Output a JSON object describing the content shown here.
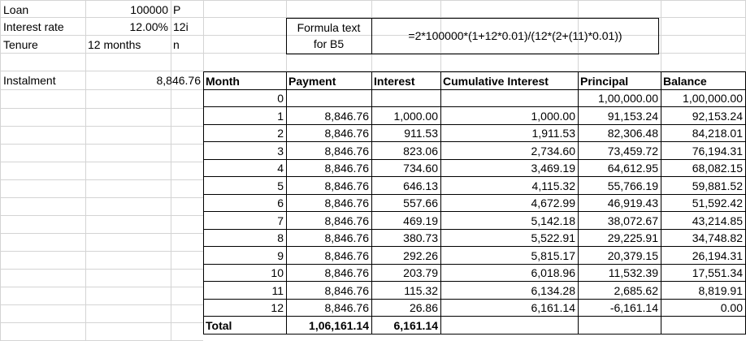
{
  "inputs": {
    "loan": {
      "label": "Loan",
      "value": "100000",
      "symbol": "P"
    },
    "rate": {
      "label": "Interest rate",
      "value": "12.00%",
      "symbol": "12i"
    },
    "tenure": {
      "label": "Tenure",
      "value": "12 months",
      "symbol": "n"
    }
  },
  "instalment": {
    "label": "Instalment",
    "value": "8,846.76"
  },
  "formula": {
    "label_line1": "Formula text",
    "label_line2": "for B5",
    "text": "=2*100000*(1+12*0.01)/(12*(2+(11)*0.01))"
  },
  "table": {
    "headers": [
      "Month",
      "Payment",
      "Interest",
      "Cumulative Interest",
      "Principal",
      "Balance"
    ],
    "rows": [
      {
        "month": "0",
        "payment": "",
        "interest": "",
        "cum": "",
        "principal": "1,00,000.00",
        "balance": "1,00,000.00"
      },
      {
        "month": "1",
        "payment": "8,846.76",
        "interest": "1,000.00",
        "cum": "1,000.00",
        "principal": "91,153.24",
        "balance": "92,153.24"
      },
      {
        "month": "2",
        "payment": "8,846.76",
        "interest": "911.53",
        "cum": "1,911.53",
        "principal": "82,306.48",
        "balance": "84,218.01"
      },
      {
        "month": "3",
        "payment": "8,846.76",
        "interest": "823.06",
        "cum": "2,734.60",
        "principal": "73,459.72",
        "balance": "76,194.31"
      },
      {
        "month": "4",
        "payment": "8,846.76",
        "interest": "734.60",
        "cum": "3,469.19",
        "principal": "64,612.95",
        "balance": "68,082.15"
      },
      {
        "month": "5",
        "payment": "8,846.76",
        "interest": "646.13",
        "cum": "4,115.32",
        "principal": "55,766.19",
        "balance": "59,881.52"
      },
      {
        "month": "6",
        "payment": "8,846.76",
        "interest": "557.66",
        "cum": "4,672.99",
        "principal": "46,919.43",
        "balance": "51,592.42"
      },
      {
        "month": "7",
        "payment": "8,846.76",
        "interest": "469.19",
        "cum": "5,142.18",
        "principal": "38,072.67",
        "balance": "43,214.85"
      },
      {
        "month": "8",
        "payment": "8,846.76",
        "interest": "380.73",
        "cum": "5,522.91",
        "principal": "29,225.91",
        "balance": "34,748.82"
      },
      {
        "month": "9",
        "payment": "8,846.76",
        "interest": "292.26",
        "cum": "5,815.17",
        "principal": "20,379.15",
        "balance": "26,194.31"
      },
      {
        "month": "10",
        "payment": "8,846.76",
        "interest": "203.79",
        "cum": "6,018.96",
        "principal": "11,532.39",
        "balance": "17,551.34"
      },
      {
        "month": "11",
        "payment": "8,846.76",
        "interest": "115.32",
        "cum": "6,134.28",
        "principal": "2,685.62",
        "balance": "8,819.91"
      },
      {
        "month": "12",
        "payment": "8,846.76",
        "interest": "26.86",
        "cum": "6,161.14",
        "principal": "-6,161.14",
        "balance": "0.00"
      }
    ],
    "total": {
      "label": "Total",
      "payment": "1,06,161.14",
      "interest": "6,161.14"
    }
  }
}
